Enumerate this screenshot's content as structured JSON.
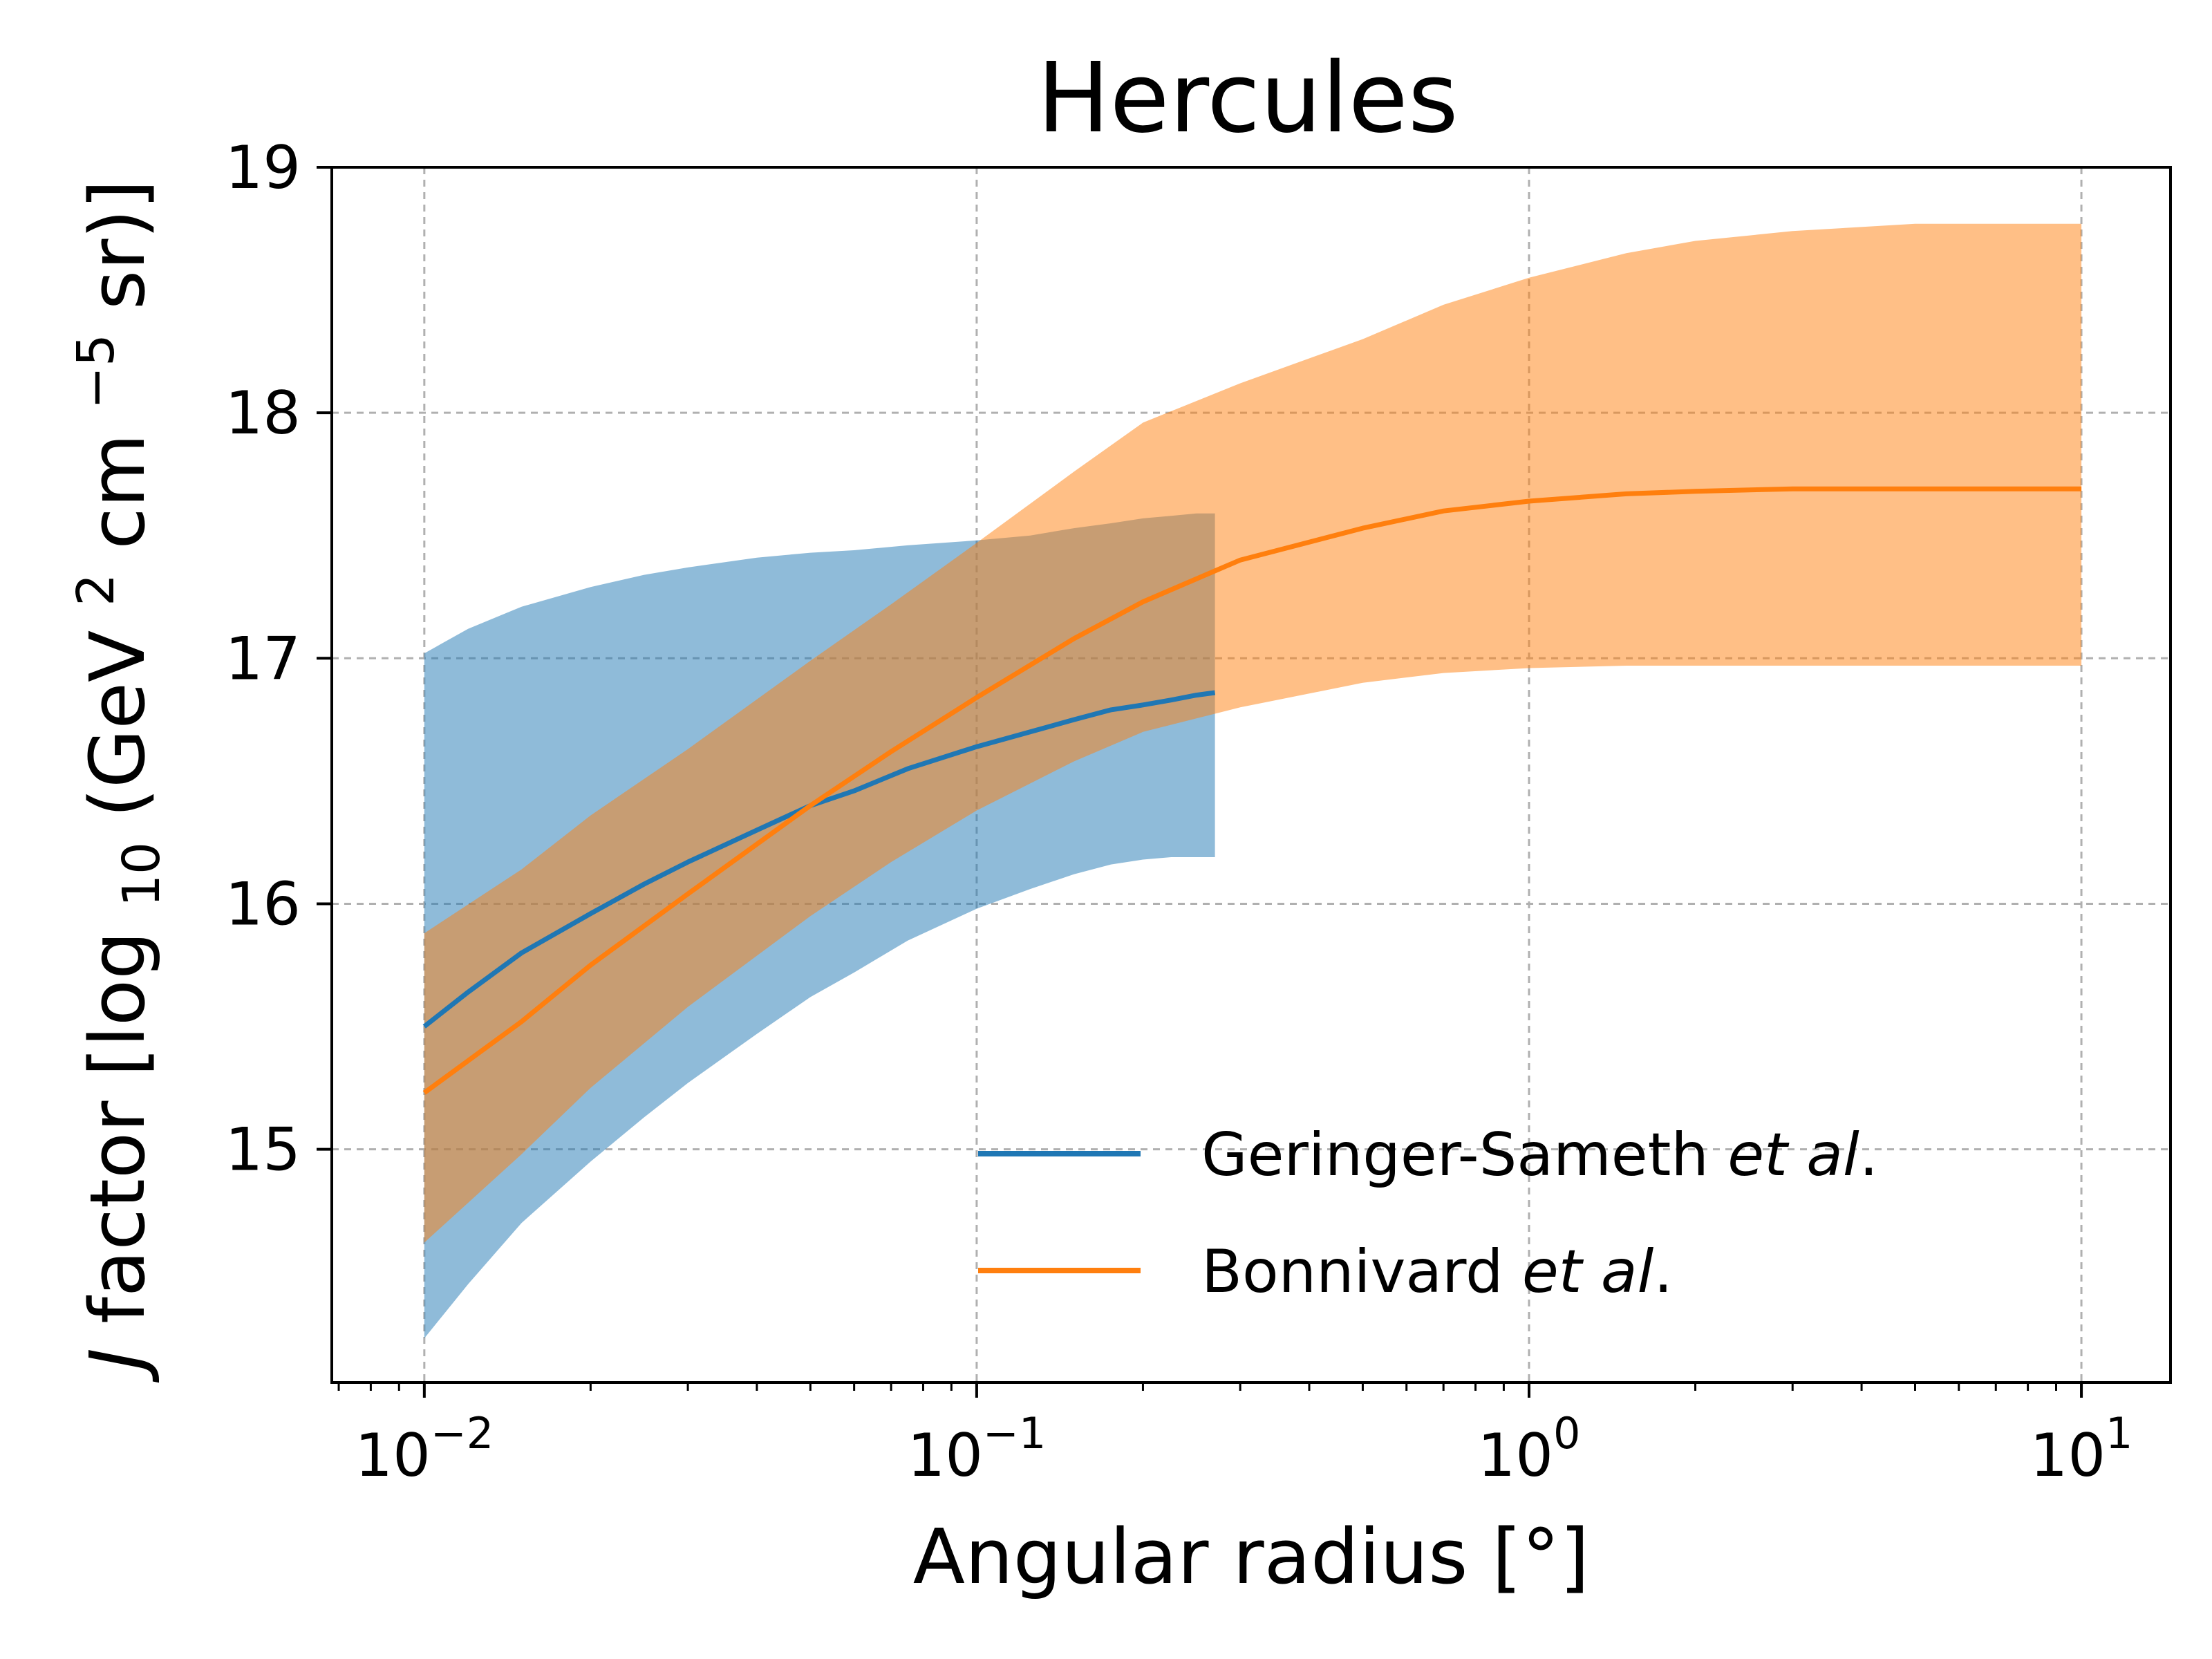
{
  "chart_data": {
    "type": "line",
    "title": "Hercules",
    "xlabel": "Angular radius [°]",
    "ylabel_main": "factor [log",
    "ylabel_italic": "J",
    "ylabel_sub": "10",
    "ylabel_rest": "(GeV",
    "ylabel_sup1": "2",
    "ylabel_cm": "cm",
    "ylabel_sup2": "−5",
    "ylabel_end": "sr)]",
    "x_scale": "log",
    "xlim": [
      0.0068,
      14.5
    ],
    "ylim": [
      14.05,
      19.0
    ],
    "grid": true,
    "legend_position": "lower right",
    "x_ticks": [
      {
        "value": 0.01,
        "base": "10",
        "exp": "−2"
      },
      {
        "value": 0.1,
        "base": "10",
        "exp": "−1"
      },
      {
        "value": 1,
        "base": "10",
        "exp": "0"
      },
      {
        "value": 10,
        "base": "10",
        "exp": "1"
      }
    ],
    "y_ticks": [
      {
        "value": 15,
        "label": "15"
      },
      {
        "value": 16,
        "label": "16"
      },
      {
        "value": 17,
        "label": "17"
      },
      {
        "value": 18,
        "label": "18"
      },
      {
        "value": 19,
        "label": "19"
      }
    ],
    "series": [
      {
        "name_plain": "Geringer-Sameth ",
        "name_italic": "et al",
        "name_end": ".",
        "color": "#1f77b4",
        "band_color": "#1f77b4",
        "band_opacity": 0.5,
        "x": [
          0.01,
          0.012,
          0.015,
          0.02,
          0.025,
          0.03,
          0.04,
          0.05,
          0.06,
          0.075,
          0.1,
          0.125,
          0.15,
          0.175,
          0.2,
          0.225,
          0.25,
          0.27
        ],
        "y": [
          15.5,
          15.64,
          15.8,
          15.96,
          16.08,
          16.17,
          16.3,
          16.4,
          16.46,
          16.55,
          16.64,
          16.7,
          16.75,
          16.79,
          16.81,
          16.83,
          16.85,
          16.86
        ],
        "lower": [
          14.23,
          14.45,
          14.7,
          14.95,
          15.13,
          15.27,
          15.47,
          15.62,
          15.72,
          15.85,
          15.98,
          16.06,
          16.12,
          16.16,
          16.18,
          16.19,
          16.19,
          16.19
        ],
        "upper": [
          17.02,
          17.12,
          17.21,
          17.29,
          17.34,
          17.37,
          17.41,
          17.43,
          17.44,
          17.46,
          17.48,
          17.5,
          17.53,
          17.55,
          17.57,
          17.58,
          17.59,
          17.59
        ]
      },
      {
        "name_plain": "Bonnivard ",
        "name_italic": "et al",
        "name_end": ".",
        "color": "#ff7f0e",
        "band_color": "#ff7f0e",
        "band_opacity": 0.5,
        "x": [
          0.01,
          0.015,
          0.02,
          0.03,
          0.05,
          0.07,
          0.1,
          0.15,
          0.2,
          0.3,
          0.5,
          0.7,
          1.0,
          1.5,
          2.0,
          3.0,
          5.0,
          7.0,
          10.0
        ],
        "y": [
          15.23,
          15.52,
          15.75,
          16.04,
          16.4,
          16.62,
          16.84,
          17.08,
          17.23,
          17.4,
          17.53,
          17.6,
          17.64,
          17.67,
          17.68,
          17.69,
          17.69,
          17.69,
          17.69
        ],
        "lower": [
          14.62,
          14.98,
          15.25,
          15.58,
          15.95,
          16.17,
          16.38,
          16.58,
          16.7,
          16.8,
          16.9,
          16.94,
          16.96,
          16.97,
          16.97,
          16.97,
          16.97,
          16.97,
          16.97
        ],
        "upper": [
          15.88,
          16.14,
          16.36,
          16.63,
          16.99,
          17.22,
          17.47,
          17.76,
          17.96,
          18.12,
          18.3,
          18.44,
          18.55,
          18.65,
          18.7,
          18.74,
          18.77,
          18.77,
          18.77
        ]
      }
    ]
  }
}
